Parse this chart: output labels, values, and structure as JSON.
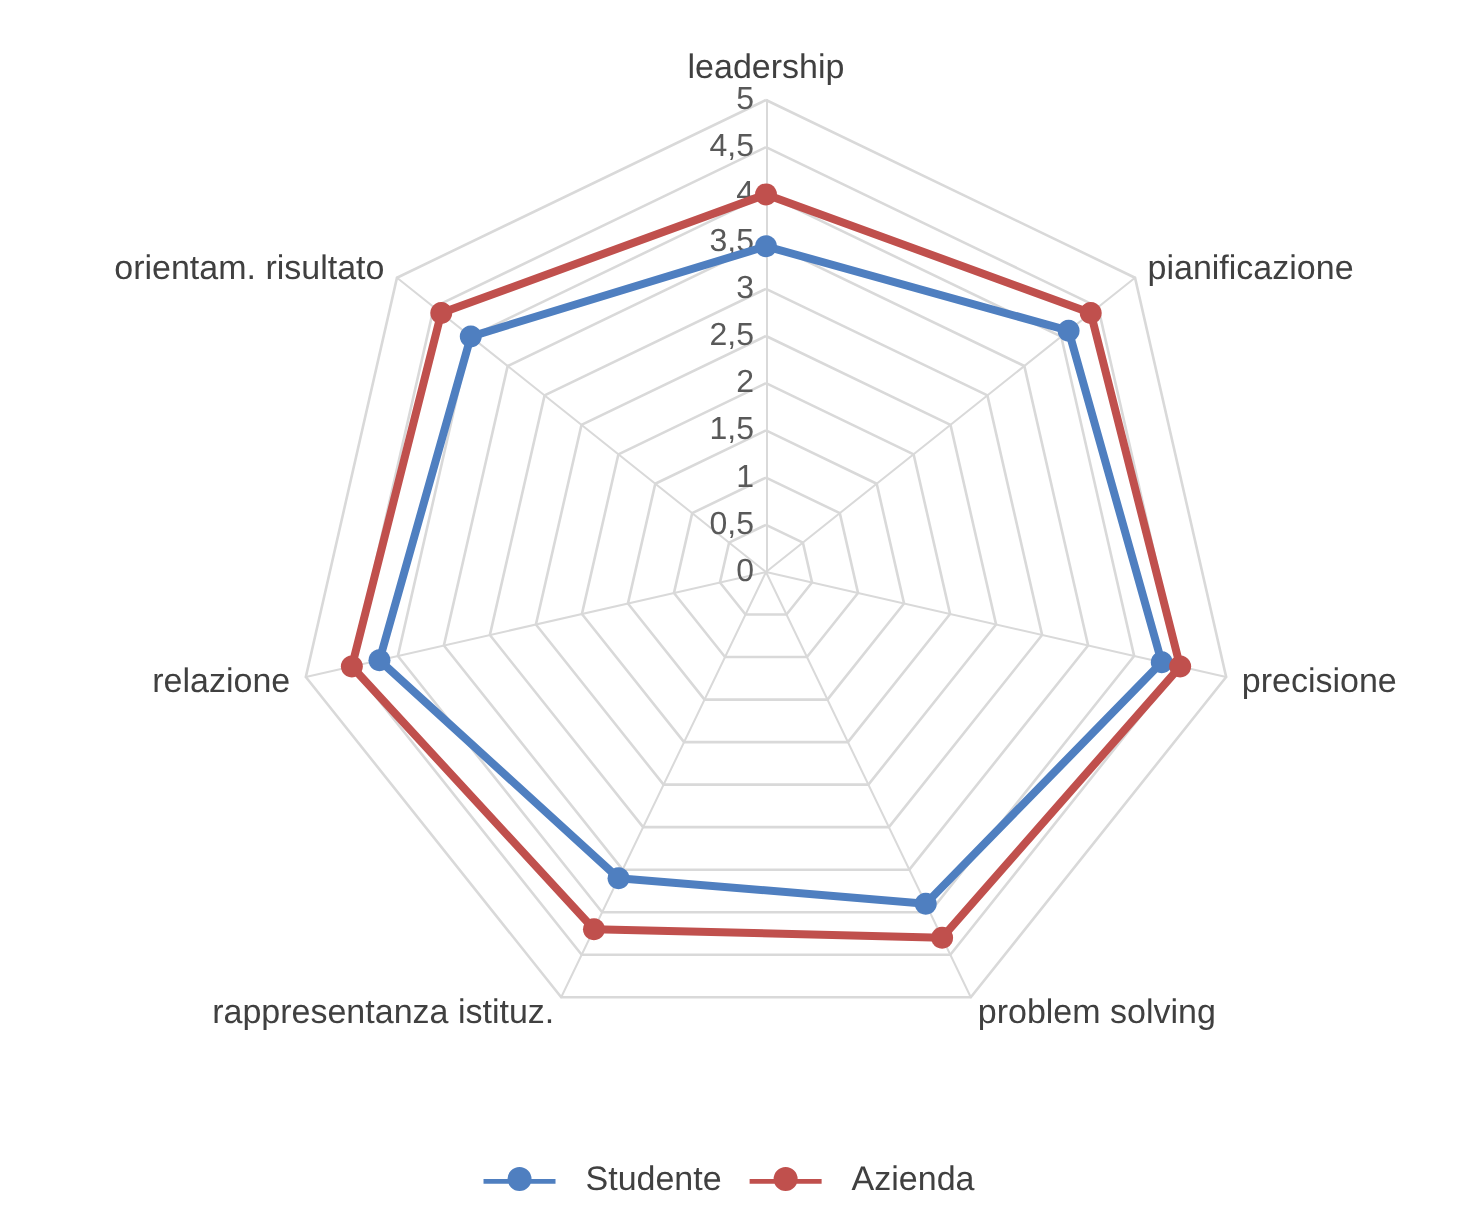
{
  "chart_data": {
    "type": "radar",
    "categories": [
      "leadership",
      "pianificazione",
      "precisione",
      "problem solving",
      "rappresentanza istituz.",
      "relazione",
      "orientam. risultato"
    ],
    "series": [
      {
        "name": "Studente",
        "color": "#4f7fc0",
        "values": [
          3.45,
          4.1,
          4.3,
          3.9,
          3.6,
          4.2,
          4.0
        ]
      },
      {
        "name": "Azienda",
        "color": "#c0504d",
        "values": [
          4.0,
          4.4,
          4.5,
          4.3,
          4.2,
          4.5,
          4.4
        ]
      }
    ],
    "ylim": [
      0,
      5
    ],
    "yticks": [
      0,
      {
        "value": 0.5,
        "label": "0,5"
      },
      1,
      {
        "value": 1.5,
        "label": "1,5"
      },
      2,
      {
        "value": 2.5,
        "label": "2,5"
      },
      3,
      {
        "value": 3.5,
        "label": "3,5"
      },
      4,
      {
        "value": 4.5,
        "label": "4,5"
      },
      5
    ],
    "grid": true,
    "legend": "bottom",
    "marker": "circle"
  }
}
